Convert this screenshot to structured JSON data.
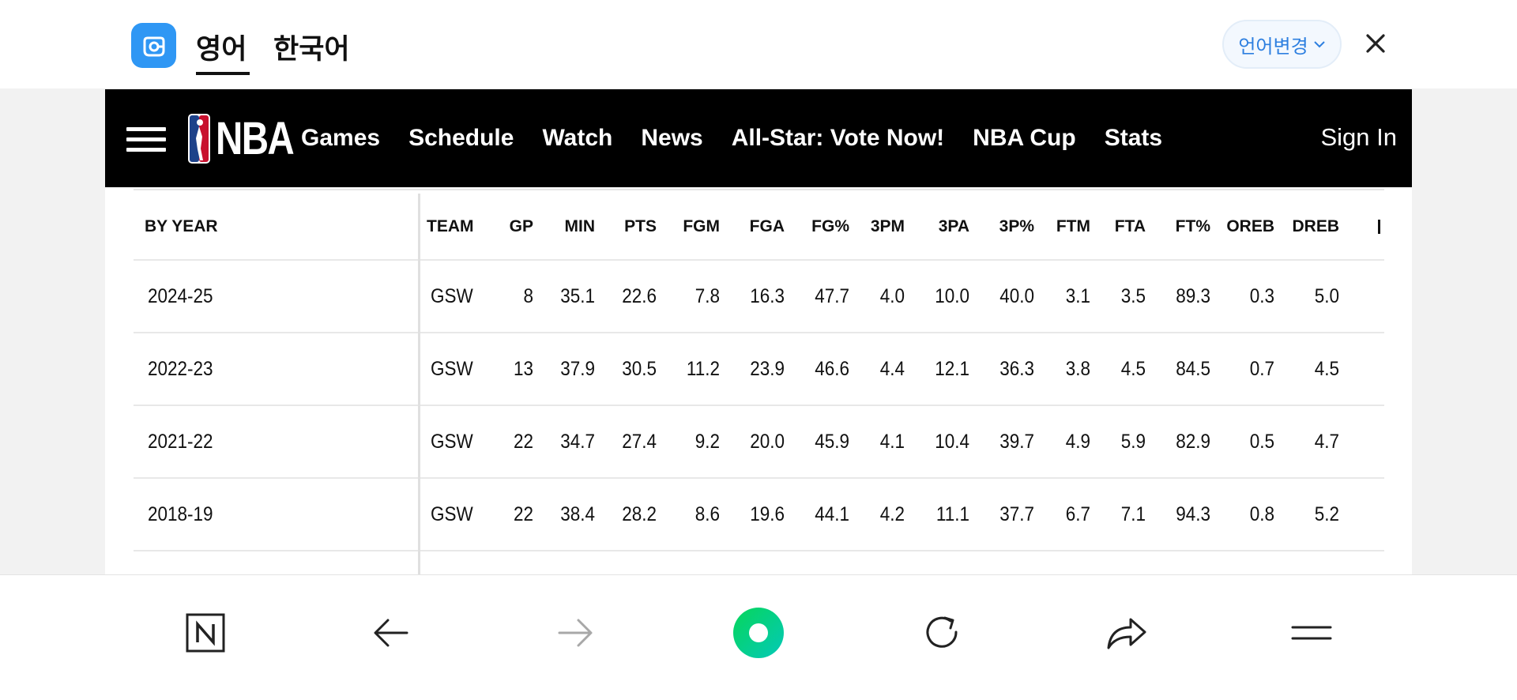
{
  "translation_bar": {
    "tabs": [
      {
        "label": "영어",
        "active": true
      },
      {
        "label": "한국어",
        "active": false
      }
    ],
    "language_change_label": "언어변경",
    "accent_color": "#2f97f4"
  },
  "nba_header": {
    "logo_text": "NBA",
    "nav_items": [
      "Games",
      "Schedule",
      "Watch",
      "News",
      "All-Star: Vote Now!",
      "NBA Cup",
      "Stats"
    ],
    "sign_in_label": "Sign In"
  },
  "stats_table": {
    "columns": [
      "BY YEAR",
      "TEAM",
      "GP",
      "MIN",
      "PTS",
      "FGM",
      "FGA",
      "FG%",
      "3PM",
      "3PA",
      "3P%",
      "FTM",
      "FTA",
      "FT%",
      "OREB",
      "DREB"
    ],
    "rows": [
      [
        "2024-25",
        "GSW",
        "8",
        "35.1",
        "22.6",
        "7.8",
        "16.3",
        "47.7",
        "4.0",
        "10.0",
        "40.0",
        "3.1",
        "3.5",
        "89.3",
        "0.3",
        "5.0"
      ],
      [
        "2022-23",
        "GSW",
        "13",
        "37.9",
        "30.5",
        "11.2",
        "23.9",
        "46.6",
        "4.4",
        "12.1",
        "36.3",
        "3.8",
        "4.5",
        "84.5",
        "0.7",
        "4.5"
      ],
      [
        "2021-22",
        "GSW",
        "22",
        "34.7",
        "27.4",
        "9.2",
        "20.0",
        "45.9",
        "4.1",
        "10.4",
        "39.7",
        "4.9",
        "5.9",
        "82.9",
        "0.5",
        "4.7"
      ],
      [
        "2018-19",
        "GSW",
        "22",
        "38.4",
        "28.2",
        "8.6",
        "19.6",
        "44.1",
        "4.2",
        "11.1",
        "37.7",
        "6.7",
        "7.1",
        "94.3",
        "0.8",
        "5.2"
      ]
    ],
    "link_color": "#1d68d6"
  },
  "bottom_bar": {
    "icons": [
      "naver-home-icon",
      "back-arrow-icon",
      "forward-arrow-icon",
      "green-dot-icon",
      "reload-icon",
      "share-icon",
      "menu-icon"
    ],
    "forward_disabled": true
  }
}
